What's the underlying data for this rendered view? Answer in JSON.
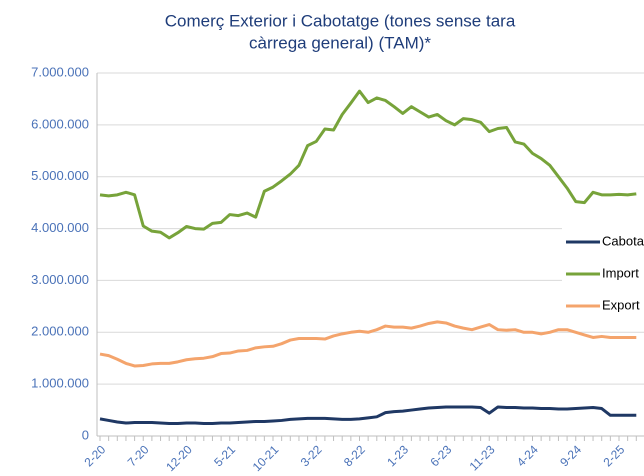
{
  "chart_data": {
    "type": "line",
    "title": [
      "Comerç Exterior i Cabotatge (tones sense tara",
      "càrrega general) (TAM)*"
    ],
    "categories": [
      "2-20",
      null,
      null,
      null,
      null,
      "7-20",
      null,
      null,
      null,
      null,
      "12-20",
      null,
      null,
      null,
      null,
      "5-21",
      null,
      null,
      null,
      null,
      "10-21",
      null,
      null,
      null,
      null,
      "3-22",
      null,
      null,
      null,
      null,
      "8-22",
      null,
      null,
      null,
      null,
      "1-23",
      null,
      null,
      null,
      null,
      "6-23",
      null,
      null,
      null,
      null,
      "11-23",
      null,
      null,
      null,
      null,
      "4-24",
      null,
      null,
      null,
      null,
      "9-24",
      null,
      null,
      null,
      null,
      "2-25",
      null,
      null
    ],
    "series": [
      {
        "name": "Cabotatge",
        "color": "#1f3864",
        "values": [
          330000,
          300000,
          270000,
          250000,
          260000,
          260000,
          260000,
          250000,
          240000,
          240000,
          250000,
          250000,
          240000,
          240000,
          250000,
          250000,
          260000,
          270000,
          280000,
          280000,
          290000,
          300000,
          320000,
          330000,
          340000,
          340000,
          340000,
          330000,
          320000,
          320000,
          330000,
          350000,
          370000,
          450000,
          470000,
          480000,
          500000,
          520000,
          540000,
          550000,
          560000,
          560000,
          560000,
          560000,
          550000,
          440000,
          560000,
          550000,
          550000,
          540000,
          540000,
          530000,
          530000,
          520000,
          520000,
          530000,
          540000,
          550000,
          530000,
          400000,
          400000,
          400000,
          400000
        ]
      },
      {
        "name": "Import",
        "color": "#77a33a",
        "values": [
          4650000,
          4630000,
          4650000,
          4700000,
          4650000,
          4050000,
          3950000,
          3930000,
          3820000,
          3920000,
          4040000,
          4000000,
          3990000,
          4100000,
          4120000,
          4270000,
          4250000,
          4300000,
          4220000,
          4720000,
          4800000,
          4920000,
          5050000,
          5220000,
          5600000,
          5680000,
          5920000,
          5900000,
          6200000,
          6420000,
          6650000,
          6430000,
          6520000,
          6470000,
          6350000,
          6220000,
          6350000,
          6250000,
          6150000,
          6200000,
          6080000,
          6000000,
          6120000,
          6100000,
          6050000,
          5870000,
          5930000,
          5950000,
          5670000,
          5630000,
          5450000,
          5350000,
          5220000,
          5000000,
          4780000,
          4520000,
          4500000,
          4700000,
          4650000,
          4650000,
          4660000,
          4650000,
          4670000
        ]
      },
      {
        "name": "Export",
        "color": "#f4a46c",
        "values": [
          1580000,
          1550000,
          1480000,
          1400000,
          1350000,
          1360000,
          1390000,
          1400000,
          1400000,
          1430000,
          1470000,
          1490000,
          1500000,
          1530000,
          1590000,
          1600000,
          1640000,
          1650000,
          1700000,
          1720000,
          1730000,
          1780000,
          1850000,
          1880000,
          1880000,
          1880000,
          1870000,
          1930000,
          1970000,
          2000000,
          2020000,
          2000000,
          2050000,
          2120000,
          2100000,
          2100000,
          2080000,
          2120000,
          2170000,
          2200000,
          2180000,
          2120000,
          2080000,
          2050000,
          2100000,
          2150000,
          2050000,
          2040000,
          2050000,
          2000000,
          2000000,
          1970000,
          2000000,
          2050000,
          2050000,
          2000000,
          1950000,
          1900000,
          1920000,
          1900000,
          1900000,
          1900000,
          1900000
        ]
      }
    ],
    "ylim": [
      0,
      7000000
    ],
    "yticks": [
      0,
      {
        "value": 1000000,
        "label": "1.000.000"
      },
      {
        "value": 2000000,
        "label": "2.000.000"
      },
      {
        "value": 3000000,
        "label": "3.000.000"
      },
      {
        "value": 4000000,
        "label": "4.000.000"
      },
      {
        "value": 5000000,
        "label": "5.000.000"
      },
      {
        "value": 6000000,
        "label": "6.000.000"
      },
      {
        "value": 7000000,
        "label": "7.000.000"
      }
    ],
    "grid": true,
    "legend": "right"
  }
}
